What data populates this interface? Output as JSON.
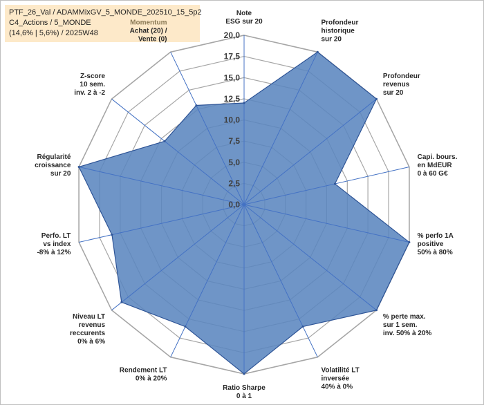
{
  "window_title": "PTF_26_Val / ADAMMixGV_5_MONDE_202510_15_5p2 C4_Actions / 5_MONDE (14,6% | 5,6%) / 2025W48",
  "header": {
    "line1": "PTF_26_Val / ADAMMixGV_5_MONDE_202510_15_5p2",
    "line2": "C4_Actions / 5_MONDE",
    "line3": "(14,6% | 5,6%) / 2025W48"
  },
  "colors": {
    "fill": "#5b86bf",
    "stroke": "#2f5597",
    "grid": "#a6a6a6",
    "spoke": "#4472c4",
    "title_bg": "#fde9c9"
  },
  "chart_data": {
    "type": "radar",
    "title": "PTF_26_Val / ADAMMixGV_5_MONDE_202510_15_5p2",
    "rlim": [
      0,
      20
    ],
    "ticks": [
      "0,0",
      "2,5",
      "5,0",
      "7,5",
      "10,0",
      "12,5",
      "15,0",
      "17,5",
      "20,0"
    ],
    "grid": true,
    "categories": [
      [
        "Note",
        "ESG sur 20"
      ],
      [
        "Profondeur",
        "historique",
        "sur 20"
      ],
      [
        "Profondeur",
        "revenus",
        "sur 20"
      ],
      [
        "Capi. bours.",
        "en MdEUR",
        "0 à 60 G€"
      ],
      [
        "% perfo 1A",
        "positive",
        "50% à 80%"
      ],
      [
        "% perte max.",
        "sur 1 sem.",
        "inv. 50% à 20%"
      ],
      [
        "Volatilité LT",
        "inversée",
        "40% à 0%"
      ],
      [
        "Ratio Sharpe",
        "0 à 1"
      ],
      [
        "Rendement LT",
        "0% à 20%"
      ],
      [
        "Niveau LT",
        "revenus",
        "reccurents",
        "0% à 6%"
      ],
      [
        "Perfo. LT",
        "vs index",
        "-8% à 12%"
      ],
      [
        "Régularité",
        "croissance",
        "sur 20"
      ],
      [
        "Z-score",
        "10 sem.",
        "inv. 2 à -2"
      ],
      [
        "Momentum",
        "Achat (20) /",
        "Vente (0)"
      ]
    ],
    "series": [
      {
        "name": "PTF_26_Val",
        "values": [
          12,
          20,
          20,
          11,
          20,
          20,
          16,
          20,
          16,
          18.5,
          16,
          20,
          12,
          13
        ]
      }
    ]
  }
}
